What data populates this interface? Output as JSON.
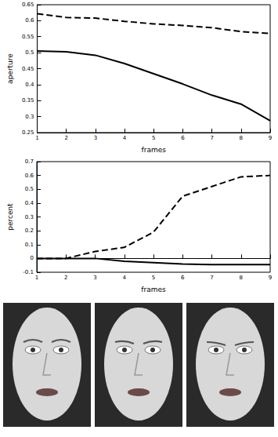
{
  "chart_data": [
    {
      "type": "line",
      "x_label": "frames",
      "y_label": "aperture",
      "x": [
        1,
        2,
        3,
        4,
        5,
        6,
        7,
        8,
        9
      ],
      "xlim": [
        1,
        9
      ],
      "xticks": [
        1,
        2,
        3,
        4,
        5,
        6,
        7,
        8,
        9
      ],
      "ylim": [
        0.25,
        0.65
      ],
      "yticks": [
        0.25,
        0.3,
        0.35,
        0.4,
        0.45,
        0.5,
        0.55,
        0.6,
        0.65
      ],
      "grid": false,
      "series": [
        {
          "color": "#000000",
          "line_style": "dashed",
          "values": [
            0.622,
            0.61,
            0.608,
            0.598,
            0.59,
            0.585,
            0.578,
            0.566,
            0.56
          ]
        },
        {
          "color": "#000000",
          "line_style": "solid",
          "values": [
            0.505,
            0.503,
            0.492,
            0.466,
            0.434,
            0.402,
            0.367,
            0.339,
            0.287
          ]
        }
      ]
    },
    {
      "type": "line",
      "x_label": "frames",
      "y_label": "percent",
      "x": [
        1,
        2,
        3,
        4,
        5,
        6,
        7,
        8,
        9
      ],
      "xlim": [
        1,
        9
      ],
      "xticks": [
        1,
        2,
        3,
        4,
        5,
        6,
        7,
        8,
        9
      ],
      "ylim": [
        -0.1,
        0.7
      ],
      "yticks": [
        -0.1,
        0,
        0.1,
        0.2,
        0.3,
        0.4,
        0.5,
        0.6,
        0.7
      ],
      "grid": false,
      "series": [
        {
          "color": "#000000",
          "line_style": "dashed",
          "values": [
            0,
            0,
            0.05,
            0.08,
            0.19,
            0.45,
            0.52,
            0.59,
            0.6
          ]
        },
        {
          "color": "#000000",
          "line_style": "solid",
          "values": [
            0,
            0,
            0,
            -0.02,
            -0.03,
            -0.04,
            -0.045,
            -0.045,
            -0.045
          ]
        }
      ]
    }
  ]
}
